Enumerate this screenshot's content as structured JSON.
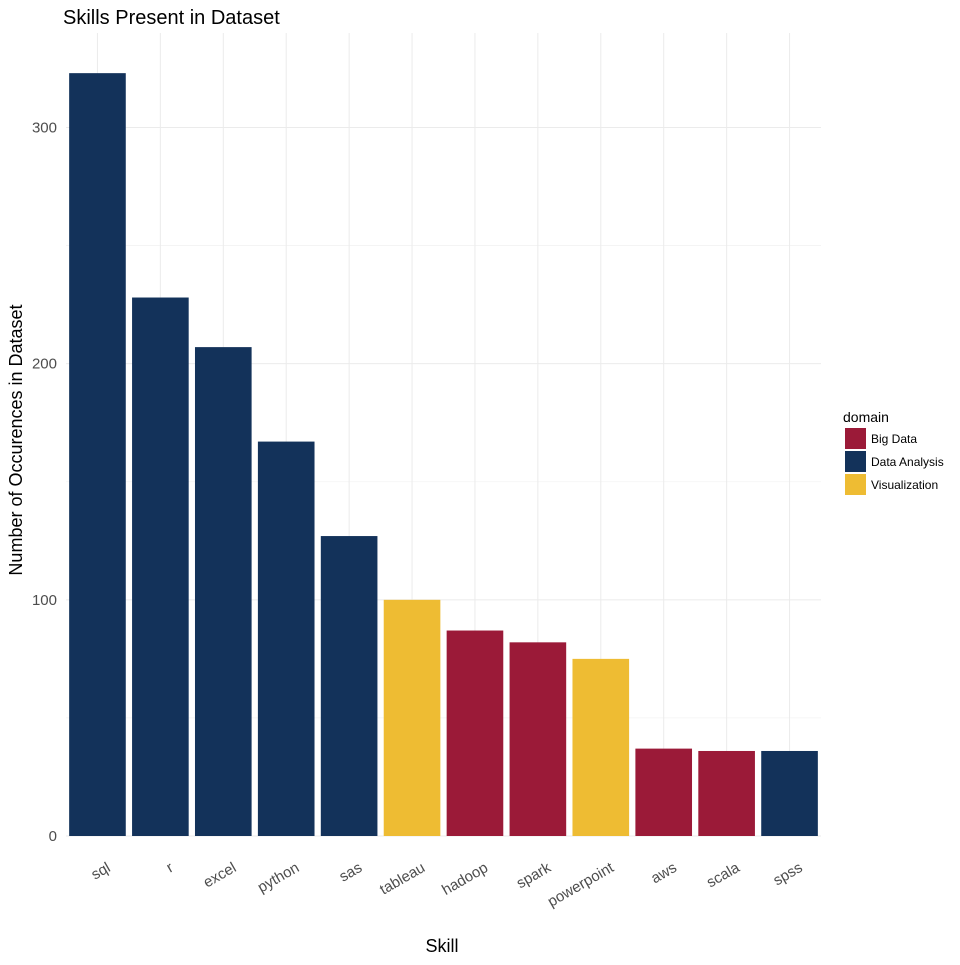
{
  "chart_data": {
    "type": "bar",
    "title": "Skills Present in Dataset",
    "xlabel": "Skill",
    "ylabel": "Number of Occurences in Dataset",
    "categories": [
      "sql",
      "r",
      "excel",
      "python",
      "sas",
      "tableau",
      "hadoop",
      "spark",
      "powerpoint",
      "aws",
      "scala",
      "spss"
    ],
    "values": [
      323,
      228,
      207,
      167,
      127,
      100,
      87,
      82,
      75,
      37,
      36,
      36
    ],
    "domains": [
      "Data Analysis",
      "Data Analysis",
      "Data Analysis",
      "Data Analysis",
      "Data Analysis",
      "Visualization",
      "Big Data",
      "Big Data",
      "Visualization",
      "Big Data",
      "Big Data",
      "Data Analysis"
    ],
    "ylim": [
      0,
      340
    ],
    "yticks": [
      0,
      100,
      200,
      300
    ],
    "grid": true,
    "legend": {
      "title": "domain",
      "placement": "right",
      "entries": [
        {
          "label": "Big Data",
          "color": "#9b1a38"
        },
        {
          "label": "Data Analysis",
          "color": "#13325a"
        },
        {
          "label": "Visualization",
          "color": "#eebc33"
        }
      ]
    }
  }
}
